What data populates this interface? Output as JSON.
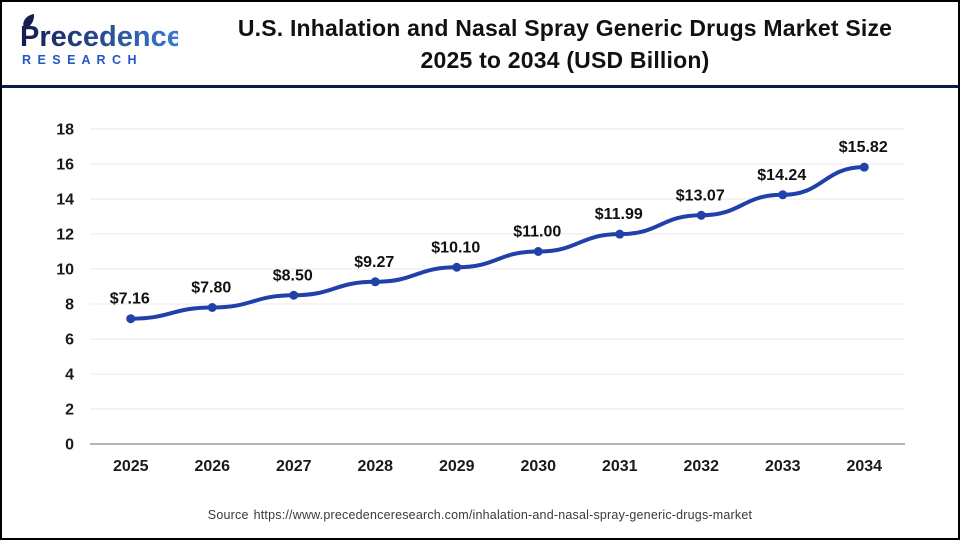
{
  "header": {
    "logo": {
      "name": "Precedence",
      "subtitle": "R E S E A R C H",
      "name_color_start": "#151c4e",
      "name_color_end": "#3a7bd5",
      "subtitle_color": "#2456c9"
    },
    "title_line1": "U.S. Inhalation and Nasal Spray Generic Drugs Market Size",
    "title_line2": "2025 to 2034 (USD Billion)"
  },
  "chart_data": {
    "type": "line",
    "title": "U.S. Inhalation and Nasal Spray Generic Drugs Market Size 2025 to 2034 (USD Billion)",
    "categories": [
      "2025",
      "2026",
      "2027",
      "2028",
      "2029",
      "2030",
      "2031",
      "2032",
      "2033",
      "2034"
    ],
    "series": [
      {
        "name": "U.S. Inhalation and Nasal Spray Generic Drugs Market Size (USD Billion)",
        "values": [
          7.16,
          7.8,
          8.5,
          9.27,
          10.1,
          11.0,
          11.99,
          13.07,
          14.24,
          15.82
        ],
        "labels": [
          "$7.16",
          "$7.80",
          "$8.50",
          "$9.27",
          "$10.10",
          "$11.00",
          "$11.99",
          "$13.07",
          "$14.24",
          "$15.82"
        ]
      }
    ],
    "xlabel": "",
    "ylabel": "",
    "ylim": [
      0,
      18
    ],
    "ytick_step": 2,
    "grid": true,
    "legend": false,
    "line_color": "#1f41a9",
    "marker_color": "#1f41a9",
    "gridline_color": "#e8e8e8",
    "zeroline_color": "#b3b3b3",
    "axis_label_color": "#1a1a1a",
    "data_label_color": "#111111"
  },
  "footer": {
    "source_label": "Source",
    "source_url": "https://www.precedenceresearch.com/inhalation-and-nasal-spray-generic-drugs-market"
  }
}
